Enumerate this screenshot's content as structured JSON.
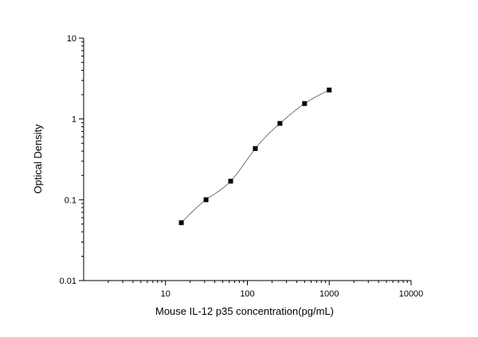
{
  "chart_data": {
    "type": "scatter",
    "title": "",
    "xlabel": "Mouse IL-12 p35 concentration(pg/mL)",
    "ylabel": "Optical Density",
    "x_scale": "log",
    "y_scale": "log",
    "xlim": [
      1,
      10000
    ],
    "ylim": [
      0.01,
      10
    ],
    "x_ticks": [
      {
        "value": 10,
        "label": "10"
      },
      {
        "value": 100,
        "label": "100"
      },
      {
        "value": 1000,
        "label": "1000"
      },
      {
        "value": 10000,
        "label": "10000"
      }
    ],
    "y_ticks": [
      {
        "value": 0.01,
        "label": "0.01"
      },
      {
        "value": 0.1,
        "label": "0.1"
      },
      {
        "value": 1,
        "label": "1"
      },
      {
        "value": 10,
        "label": "10"
      }
    ],
    "grid": false,
    "legend": "none",
    "series": [
      {
        "points": [
          {
            "x": 15.6,
            "y": 0.052
          },
          {
            "x": 31.25,
            "y": 0.1
          },
          {
            "x": 62.5,
            "y": 0.17
          },
          {
            "x": 125,
            "y": 0.43
          },
          {
            "x": 250,
            "y": 0.88
          },
          {
            "x": 500,
            "y": 1.55
          },
          {
            "x": 1000,
            "y": 2.28
          }
        ],
        "fit_curve": true
      }
    ],
    "colors": {
      "marker": "#000000",
      "curve": "#555555",
      "axis": "#000000"
    }
  }
}
